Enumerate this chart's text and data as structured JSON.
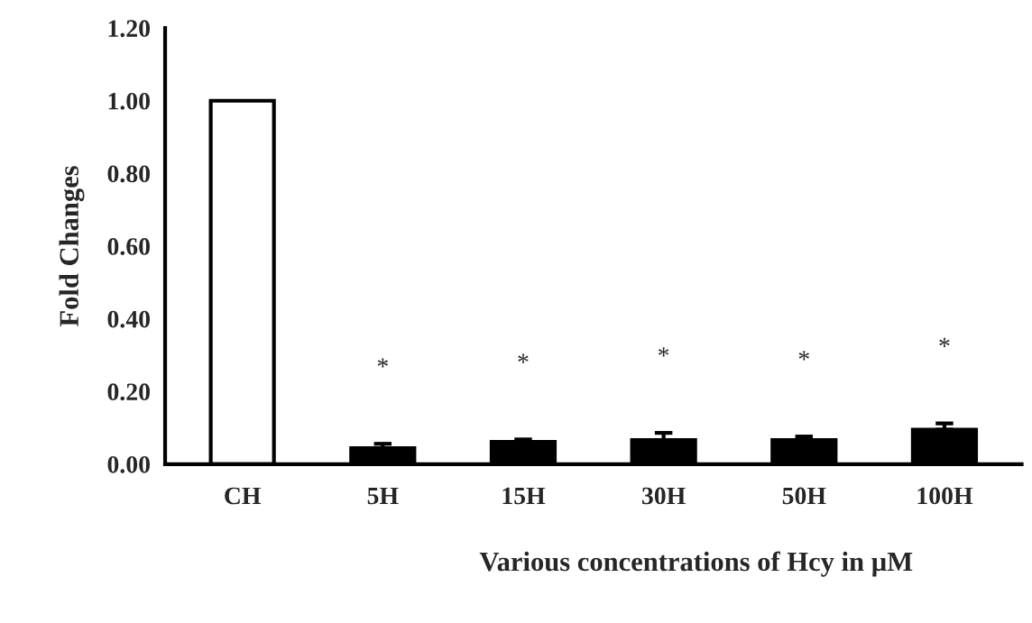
{
  "chart_data": {
    "type": "bar",
    "xlabel": "Various concentrations of Hcy in µM",
    "ylabel": "Fold Changes",
    "categories": [
      "CH",
      "5H",
      "15H",
      "30H",
      "50H",
      "100H"
    ],
    "values": [
      1.0,
      0.044,
      0.061,
      0.066,
      0.066,
      0.095
    ],
    "colors": [
      "#ffffff",
      "#000000",
      "#000000",
      "#000000",
      "#000000",
      "#000000"
    ],
    "errors": [
      null,
      [
        0.044,
        0.056
      ],
      [
        0.061,
        0.068
      ],
      [
        0.066,
        0.086
      ],
      [
        0.066,
        0.076
      ],
      [
        0.095,
        0.112
      ]
    ],
    "ylim": [
      0,
      1.2
    ],
    "yticks": [
      {
        "value": 0,
        "label": "0.00"
      },
      {
        "value": 0.2,
        "label": "0.20"
      },
      {
        "value": 0.4,
        "label": "0.40"
      },
      {
        "value": 0.6,
        "label": "0.60"
      },
      {
        "value": 0.8,
        "label": "0.80"
      },
      {
        "value": 1.0,
        "label": "1.00"
      },
      {
        "value": 1.2,
        "label": "1.20"
      }
    ],
    "annotations": [
      "*",
      "*",
      "*",
      "*",
      "*"
    ],
    "grid": false,
    "legend": false
  }
}
